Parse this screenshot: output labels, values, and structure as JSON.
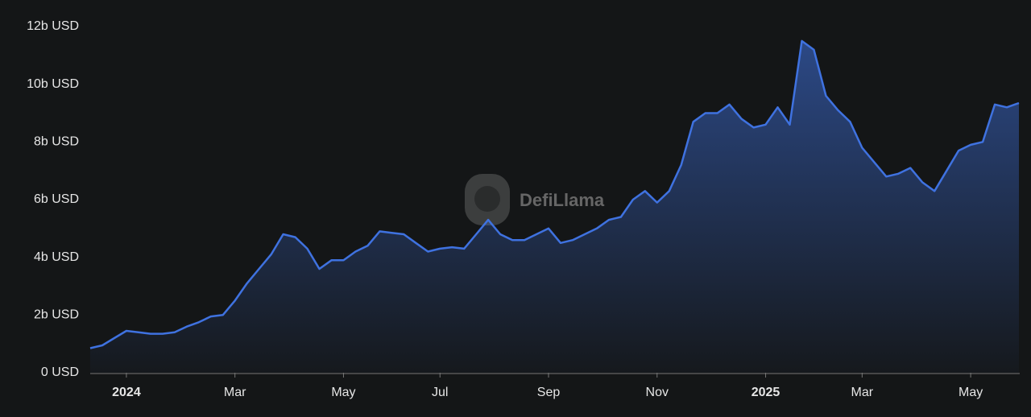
{
  "chart_data": {
    "type": "area",
    "watermark": "DefiLlama",
    "color": "#3f72e0",
    "categories": [
      null,
      null,
      null,
      "2024",
      null,
      null,
      null,
      null,
      null,
      null,
      null,
      null,
      "Mar",
      null,
      null,
      null,
      null,
      null,
      null,
      null,
      null,
      "May",
      null,
      null,
      null,
      null,
      null,
      null,
      null,
      "Jul",
      null,
      null,
      null,
      null,
      null,
      null,
      null,
      null,
      "Sep",
      null,
      null,
      null,
      null,
      null,
      null,
      null,
      null,
      "Nov",
      null,
      null,
      null,
      null,
      null,
      null,
      null,
      null,
      "2025",
      null,
      null,
      null,
      null,
      null,
      null,
      null,
      "Mar",
      null,
      null,
      null,
      null,
      null,
      null,
      null,
      null,
      "May",
      null,
      null,
      null,
      null
    ],
    "bold_categories": [
      "2024",
      "2025"
    ],
    "values": [
      850000000,
      950000000,
      1200000000,
      1450000000,
      1400000000,
      1350000000,
      1350000000,
      1400000000,
      1600000000,
      1750000000,
      1950000000,
      2000000000,
      2500000000,
      3100000000,
      3600000000,
      4100000000,
      4800000000,
      4700000000,
      4300000000,
      3600000000,
      3900000000,
      3900000000,
      4200000000,
      4400000000,
      4900000000,
      4850000000,
      4800000000,
      4500000000,
      4200000000,
      4300000000,
      4350000000,
      4300000000,
      4800000000,
      5300000000,
      4800000000,
      4600000000,
      4600000000,
      4800000000,
      5000000000,
      4500000000,
      4600000000,
      4800000000,
      5000000000,
      5300000000,
      5400000000,
      6000000000,
      6300000000,
      5900000000,
      6300000000,
      7200000000,
      8700000000,
      9000000000,
      9000000000,
      9300000000,
      8800000000,
      8500000000,
      8600000000,
      9200000000,
      8600000000,
      11500000000,
      11200000000,
      9600000000,
      9100000000,
      8700000000,
      7800000000,
      7300000000,
      6800000000,
      6900000000,
      7100000000,
      6600000000,
      6300000000,
      7000000000,
      7700000000,
      7900000000,
      8000000000,
      9300000000,
      9200000000,
      9350000000
    ],
    "ylim": [
      0,
      12000000000
    ],
    "yticks": [
      {
        "value": 0,
        "label": "0 USD"
      },
      {
        "value": 2000000000,
        "label": "2b USD"
      },
      {
        "value": 4000000000,
        "label": "4b USD"
      },
      {
        "value": 6000000000,
        "label": "6b USD"
      },
      {
        "value": 8000000000,
        "label": "8b USD"
      },
      {
        "value": 10000000000,
        "label": "10b USD"
      },
      {
        "value": 12000000000,
        "label": "12b USD"
      }
    ],
    "grid": false
  }
}
